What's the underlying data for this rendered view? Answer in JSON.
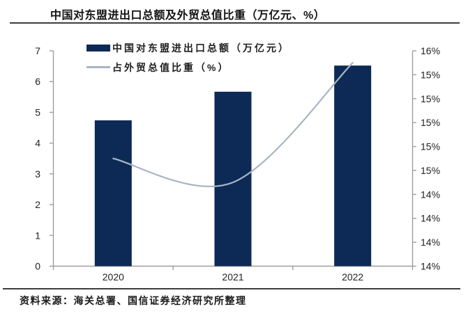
{
  "header": {
    "title": "中国对东盟进出口总额及外贸总值比重（万亿元、%）"
  },
  "legend": {
    "items": [
      {
        "label": "中国对东盟进出口总额（万亿元）",
        "marker": "bar",
        "color": "#0d2a56"
      },
      {
        "label": "占外贸总值比重（%）",
        "marker": "line",
        "color": "#a7b5c3"
      }
    ]
  },
  "chart_data": {
    "type": "bar+line combo",
    "categories": [
      "2020",
      "2021",
      "2022"
    ],
    "series": [
      {
        "name": "中国对东盟进出口总额（万亿元）",
        "type": "bar",
        "axis": "left",
        "values": [
          4.74,
          5.67,
          6.52
        ],
        "color": "#0d2a56"
      },
      {
        "name": "占外贸总值比重（%）",
        "type": "line",
        "axis": "right",
        "values": [
          14.7,
          14.5,
          15.5
        ],
        "color": "#a7b5c3",
        "smooth": true
      }
    ],
    "left_axis": {
      "min": 0,
      "max": 7,
      "step": 1,
      "tick_labels_top_to_bottom": [
        "7",
        "6",
        "5",
        "4",
        "3",
        "2",
        "1",
        "0"
      ]
    },
    "right_axis": {
      "min": 13.8,
      "max": 15.6,
      "step": 0.2,
      "tick_labels_top_to_bottom": [
        "16%",
        "15%",
        "15%",
        "15%",
        "15%",
        "15%",
        "14%",
        "14%",
        "14%",
        "14%"
      ]
    },
    "grid": false,
    "legend_position": "inside-top-left",
    "title": "中国对东盟进出口总额及外贸总值比重（万亿元、%）"
  },
  "footer": {
    "source": "资料来源：海关总署、国信证券经济研究所整理"
  },
  "colors": {
    "bar": "#0d2a56",
    "line": "#a7b5c3",
    "axis": "#9e9e9e",
    "tick_text": "#1f1f1f",
    "rule": "#3d3d3d",
    "background": "#ffffff"
  }
}
